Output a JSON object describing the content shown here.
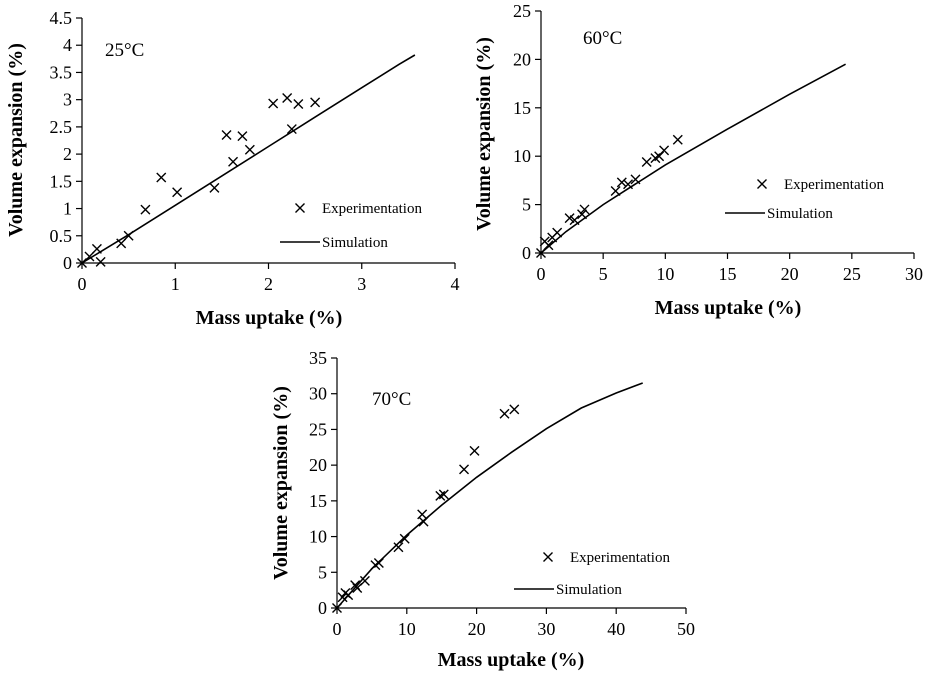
{
  "chart_data": [
    {
      "type": "scatter",
      "panel_label": "25°C",
      "xlabel": "Mass uptake (%)",
      "ylabel": "Volume expansion (%)",
      "xlim": [
        0,
        4
      ],
      "ylim": [
        0,
        4.5
      ],
      "xticks": [
        "0",
        "1",
        "2",
        "3",
        "4"
      ],
      "yticks": [
        "0",
        "0.5",
        "1",
        "1.5",
        "2",
        "2.5",
        "3",
        "3.5",
        "4",
        "4.5"
      ],
      "legend_position": "right-middle",
      "series": [
        {
          "name": "Experimentation",
          "kind": "markers",
          "marker": "x",
          "points": [
            [
              0,
              0
            ],
            [
              0.08,
              0.12
            ],
            [
              0.16,
              0.26
            ],
            [
              0.2,
              0.02
            ],
            [
              0.42,
              0.36
            ],
            [
              0.5,
              0.5
            ],
            [
              0.68,
              0.98
            ],
            [
              0.85,
              1.57
            ],
            [
              1.02,
              1.3
            ],
            [
              1.42,
              1.38
            ],
            [
              1.55,
              2.35
            ],
            [
              1.62,
              1.86
            ],
            [
              1.72,
              2.33
            ],
            [
              1.8,
              2.08
            ],
            [
              2.05,
              2.93
            ],
            [
              2.2,
              3.03
            ],
            [
              2.25,
              2.46
            ],
            [
              2.32,
              2.92
            ],
            [
              2.5,
              2.95
            ]
          ]
        },
        {
          "name": "Simulation",
          "kind": "line",
          "points": [
            [
              0,
              0
            ],
            [
              0.5,
              0.52
            ],
            [
              1,
              1.06
            ],
            [
              1.5,
              1.6
            ],
            [
              2,
              2.14
            ],
            [
              2.5,
              2.68
            ],
            [
              3,
              3.22
            ],
            [
              3.4,
              3.65
            ],
            [
              3.57,
              3.82
            ]
          ]
        }
      ]
    },
    {
      "type": "scatter",
      "panel_label": "60°C",
      "xlabel": "Mass uptake (%)",
      "ylabel": "Volume expansion (%)",
      "xlim": [
        0,
        30
      ],
      "ylim": [
        0,
        25
      ],
      "xticks": [
        "0",
        "5",
        "10",
        "15",
        "20",
        "25",
        "30"
      ],
      "yticks": [
        "0",
        "5",
        "10",
        "15",
        "20",
        "25"
      ],
      "legend_position": "right-middle",
      "series": [
        {
          "name": "Experimentation",
          "kind": "markers",
          "marker": "x",
          "points": [
            [
              0,
              0
            ],
            [
              0.3,
              1.2
            ],
            [
              0.6,
              0.8
            ],
            [
              0.9,
              1.6
            ],
            [
              1.3,
              2.1
            ],
            [
              2.3,
              3.6
            ],
            [
              2.7,
              3.4
            ],
            [
              3.3,
              4.0
            ],
            [
              3.5,
              4.5
            ],
            [
              6.0,
              6.4
            ],
            [
              6.5,
              7.3
            ],
            [
              7.0,
              7.1
            ],
            [
              7.6,
              7.6
            ],
            [
              8.5,
              9.4
            ],
            [
              9.2,
              9.8
            ],
            [
              9.5,
              10.0
            ],
            [
              9.9,
              10.6
            ],
            [
              11.0,
              11.7
            ]
          ]
        },
        {
          "name": "Simulation",
          "kind": "line",
          "points": [
            [
              0,
              0
            ],
            [
              2,
              2.2
            ],
            [
              5,
              5.0
            ],
            [
              10,
              9.1
            ],
            [
              15,
              12.8
            ],
            [
              20,
              16.4
            ],
            [
              24.5,
              19.5
            ]
          ]
        }
      ]
    },
    {
      "type": "scatter",
      "panel_label": "70°C",
      "xlabel": "Mass uptake (%)",
      "ylabel": "Volume expansion (%)",
      "xlim": [
        0,
        50
      ],
      "ylim": [
        0,
        35
      ],
      "xticks": [
        "0",
        "10",
        "20",
        "30",
        "40",
        "50"
      ],
      "yticks": [
        "0",
        "5",
        "10",
        "15",
        "20",
        "25",
        "30",
        "35"
      ],
      "legend_position": "right-middle",
      "series": [
        {
          "name": "Experimentation",
          "kind": "markers",
          "marker": "x",
          "points": [
            [
              0,
              0
            ],
            [
              0.8,
              1.5
            ],
            [
              1.2,
              2.1
            ],
            [
              1.6,
              1.8
            ],
            [
              2.6,
              3.2
            ],
            [
              2.9,
              2.8
            ],
            [
              4.0,
              3.8
            ],
            [
              5.5,
              6.0
            ],
            [
              6.0,
              6.3
            ],
            [
              8.8,
              8.5
            ],
            [
              9.7,
              9.7
            ],
            [
              12.2,
              13.1
            ],
            [
              12.4,
              12.1
            ],
            [
              14.8,
              15.7
            ],
            [
              15.3,
              15.9
            ],
            [
              18.2,
              19.4
            ],
            [
              19.7,
              22.0
            ],
            [
              24.0,
              27.2
            ],
            [
              25.4,
              27.8
            ]
          ]
        },
        {
          "name": "Simulation",
          "kind": "line",
          "points": [
            [
              0,
              0
            ],
            [
              5,
              5.5
            ],
            [
              10,
              10.2
            ],
            [
              15,
              14.4
            ],
            [
              20,
              18.3
            ],
            [
              25,
              21.8
            ],
            [
              30,
              25.1
            ],
            [
              35,
              28.0
            ],
            [
              40,
              30.1
            ],
            [
              43.8,
              31.5
            ]
          ]
        }
      ]
    }
  ]
}
